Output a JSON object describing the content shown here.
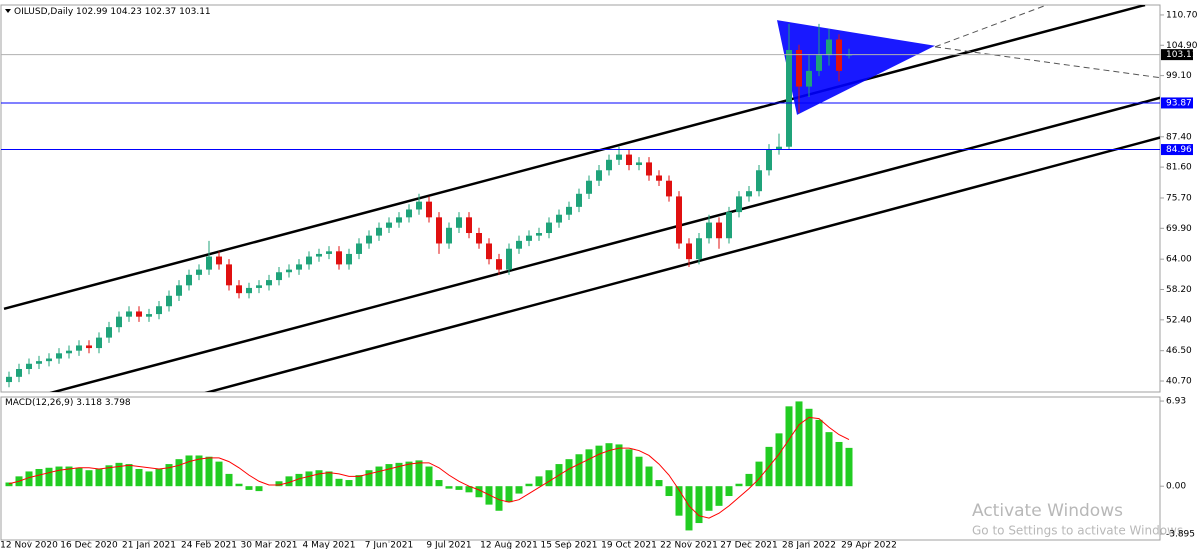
{
  "chart_data": [
    {
      "type": "candlestick",
      "symbol": "OILUSD,Daily",
      "categories": [
        null,
        null,
        "12 Nov 2020",
        null,
        null,
        null,
        null,
        null,
        "16 Dec 2020",
        null,
        null,
        null,
        null,
        null,
        "21 Jan 2021",
        null,
        null,
        null,
        null,
        null,
        "24 Feb 2021",
        null,
        null,
        null,
        null,
        null,
        "30 Mar 2021",
        null,
        null,
        null,
        null,
        null,
        "4 May 2021",
        null,
        null,
        null,
        null,
        null,
        "7 Jun 2021",
        null,
        null,
        null,
        null,
        null,
        "9 Jul 2021",
        null,
        null,
        null,
        null,
        null,
        "12 Aug 2021",
        null,
        null,
        null,
        null,
        null,
        "15 Sep 2021",
        null,
        null,
        null,
        null,
        null,
        "19 Oct 2021",
        null,
        null,
        null,
        null,
        null,
        "22 Nov 2021",
        null,
        null,
        null,
        null,
        null,
        "27 Dec 2021",
        null,
        null,
        null,
        null,
        null,
        "28 Jan 2022",
        null,
        null,
        null,
        null,
        null,
        "29 Apr 2022"
      ],
      "open": [
        40.5,
        41.5,
        43,
        44,
        44.5,
        45,
        46,
        46.5,
        47.5,
        47,
        49,
        51,
        53,
        54,
        53,
        53.5,
        55,
        57,
        59,
        61,
        62,
        64.5,
        63,
        59,
        57.5,
        58.5,
        59,
        60,
        61.5,
        62,
        63,
        64.5,
        65,
        65.5,
        63,
        65,
        67,
        68.5,
        70,
        71,
        72,
        73.5,
        75,
        72,
        67,
        70,
        72,
        69,
        67,
        64,
        62,
        66,
        67.5,
        68.5,
        69,
        71,
        72.5,
        74,
        76.5,
        79,
        81,
        83,
        84,
        82,
        82.5,
        80,
        79,
        76,
        67,
        64,
        68,
        71,
        68,
        73,
        76,
        77,
        81,
        85,
        85.5,
        104,
        97,
        100,
        103,
        106,
        102.99,
        null,
        null
      ],
      "high": [
        42.5,
        44,
        45,
        45.5,
        46,
        47,
        47.5,
        48.5,
        48.5,
        50,
        52,
        54,
        55,
        55,
        54.5,
        56,
        58,
        60,
        62,
        63,
        67.5,
        65.5,
        64,
        60,
        59.5,
        60,
        61,
        62.5,
        63,
        64,
        65.5,
        66,
        66.5,
        66.5,
        66,
        68,
        69.5,
        71,
        72,
        73,
        74.5,
        76.5,
        76,
        73,
        71,
        73,
        73,
        70,
        68,
        65,
        67,
        68.5,
        69.5,
        70,
        72,
        73.5,
        75,
        77.5,
        80,
        82,
        84,
        85.5,
        85,
        83.5,
        83.5,
        81,
        80,
        77,
        68,
        69,
        72.5,
        72,
        74,
        77,
        78,
        82,
        86,
        88,
        109,
        105,
        103,
        109,
        108,
        107,
        104.23,
        null,
        null
      ],
      "low": [
        39.5,
        40.5,
        42,
        43,
        43.5,
        44,
        45,
        45.5,
        46,
        46,
        48,
        50,
        52,
        52,
        52,
        52.5,
        54,
        56,
        58,
        60,
        61,
        62,
        58,
        56.5,
        56.5,
        57.5,
        58,
        59,
        60.5,
        61,
        62,
        63.5,
        64,
        62,
        62,
        64,
        66,
        67.5,
        69,
        70,
        71,
        72.5,
        71,
        65,
        66,
        69,
        68,
        66,
        63,
        61,
        61,
        65,
        66.5,
        67.5,
        68,
        70,
        71.5,
        73,
        75.5,
        78,
        80,
        82,
        81,
        81,
        79,
        78,
        75,
        66,
        62.5,
        63,
        67,
        66,
        67,
        72,
        75,
        76,
        80,
        84,
        85,
        92,
        95,
        99,
        101,
        98,
        102.37,
        null,
        null
      ],
      "close": [
        41.5,
        43,
        44,
        44.5,
        45,
        46,
        46.5,
        47.5,
        47,
        49,
        51,
        53,
        54,
        53,
        53.5,
        55,
        57,
        59,
        61,
        62,
        64.5,
        63,
        59,
        57.5,
        58.5,
        59,
        60,
        61.5,
        62,
        63,
        64.5,
        65,
        65.5,
        63,
        65,
        67,
        68.5,
        70,
        71,
        72,
        73.5,
        75,
        72,
        67,
        70,
        72,
        69,
        67,
        64,
        62,
        66,
        67.5,
        68.5,
        69,
        71,
        72.5,
        74,
        76.5,
        79,
        81,
        83,
        84,
        82,
        82.5,
        80,
        79,
        76,
        67,
        64,
        68,
        71,
        68,
        73,
        76,
        77,
        81,
        85,
        85.5,
        104,
        97,
        100,
        103,
        106,
        100,
        103.11,
        null,
        null
      ],
      "up_color": "#1fa37a",
      "down_color": "#e01010",
      "ylim": [
        38.6,
        112.6
      ],
      "yticks": [
        {
          "value": 110.7,
          "label": "110.70"
        },
        {
          "value": 104.9,
          "label": "104.90"
        },
        {
          "value": 99.1,
          "label": "99.10"
        },
        {
          "value": 87.4,
          "label": "87.40"
        },
        {
          "value": 81.6,
          "label": "81.60"
        },
        {
          "value": 75.7,
          "label": "75.70"
        },
        {
          "value": 69.9,
          "label": "69.90"
        },
        {
          "value": 64,
          "label": "64.00"
        },
        {
          "value": 58.2,
          "label": "58.20"
        },
        {
          "value": 52.4,
          "label": "52.40"
        },
        {
          "value": 46.5,
          "label": "46.50"
        },
        {
          "value": 40.7,
          "label": "40.70"
        }
      ],
      "levels": [
        {
          "value": 93.87,
          "color": "#0000ff"
        },
        {
          "value": 84.96,
          "color": "#0000ff"
        }
      ],
      "trendlines": [
        {
          "x": [
            -0.5,
            113.6
          ],
          "y": [
            54.5,
            112.6
          ],
          "color": "#000000"
        },
        {
          "x": [
            4.1,
            115.4
          ],
          "y": [
            38.4,
            95.0
          ],
          "color": "#000000"
        },
        {
          "x": [
            19.6,
            115.4
          ],
          "y": [
            38.4,
            87.4
          ],
          "color": "#000000"
        }
      ],
      "dashed": [
        {
          "x": [
            92.6,
            104.6
          ],
          "y": [
            104.6,
            113.2
          ],
          "color": "#555555"
        },
        {
          "x": [
            92.6,
            115.1
          ],
          "y": [
            104.6,
            98.7
          ],
          "color": "#555555"
        }
      ],
      "triangle": {
        "x": [
          76.8,
          92.6,
          78.8
        ],
        "y": [
          109.7,
          104.8,
          91.6
        ],
        "color": "#0000ff"
      }
    },
    {
      "type": "macd",
      "title": "MACD(12,26,9)",
      "values": [
        0.3,
        0.8,
        1.2,
        1.4,
        1.5,
        1.6,
        1.6,
        1.5,
        1.3,
        1.4,
        1.7,
        1.9,
        1.8,
        1.4,
        1.2,
        1.4,
        1.8,
        2.2,
        2.5,
        2.5,
        2.4,
        2.0,
        1.0,
        0.2,
        -0.3,
        -0.4,
        0.0,
        0.4,
        0.8,
        1.0,
        1.2,
        1.3,
        1.2,
        0.6,
        0.5,
        0.9,
        1.3,
        1.6,
        1.8,
        1.9,
        2.0,
        2.1,
        1.6,
        0.5,
        -0.2,
        -0.3,
        -0.5,
        -0.9,
        -1.5,
        -2.0,
        -1.3,
        -0.6,
        0.2,
        0.8,
        1.3,
        1.8,
        2.2,
        2.6,
        3.0,
        3.3,
        3.5,
        3.4,
        3.0,
        2.4,
        1.6,
        0.5,
        -0.8,
        -2.4,
        -3.6,
        -3.0,
        -2.0,
        -1.6,
        -0.8,
        0.2,
        1.0,
        2.0,
        3.2,
        4.3,
        6.5,
        6.9,
        6.3,
        5.4,
        4.4,
        3.6,
        3.118,
        null,
        null
      ],
      "color": "#22cc22",
      "signal": {
        "values": [
          0.2,
          0.4,
          0.7,
          0.9,
          1.1,
          1.3,
          1.4,
          1.5,
          1.5,
          1.4,
          1.5,
          1.6,
          1.7,
          1.6,
          1.5,
          1.4,
          1.5,
          1.7,
          2.0,
          2.2,
          2.3,
          2.3,
          2.0,
          1.5,
          0.9,
          0.4,
          0.1,
          0.1,
          0.3,
          0.6,
          0.8,
          1.0,
          1.1,
          1.0,
          0.8,
          0.8,
          1.0,
          1.2,
          1.4,
          1.6,
          1.8,
          1.9,
          1.9,
          1.5,
          0.9,
          0.4,
          0.0,
          -0.3,
          -0.7,
          -1.1,
          -1.3,
          -1.1,
          -0.6,
          -0.1,
          0.4,
          0.9,
          1.4,
          1.8,
          2.2,
          2.6,
          2.9,
          3.1,
          3.1,
          2.9,
          2.5,
          1.8,
          0.9,
          -0.3,
          -1.6,
          -2.4,
          -2.6,
          -2.2,
          -1.6,
          -0.9,
          -0.2,
          0.6,
          1.6,
          2.6,
          3.8,
          5.0,
          5.6,
          5.5,
          4.8,
          4.2,
          3.798,
          null,
          null
        ],
        "color": "#ff0000"
      },
      "ylim": [
        -4.38,
        7.26
      ],
      "yticks": [
        6.93,
        {
          "value": 0,
          "label": "0.00"
        },
        -3.895
      ]
    }
  ],
  "watermark": {
    "title": "Activate Windows",
    "subtitle": "Go to Settings to activate Windows."
  }
}
